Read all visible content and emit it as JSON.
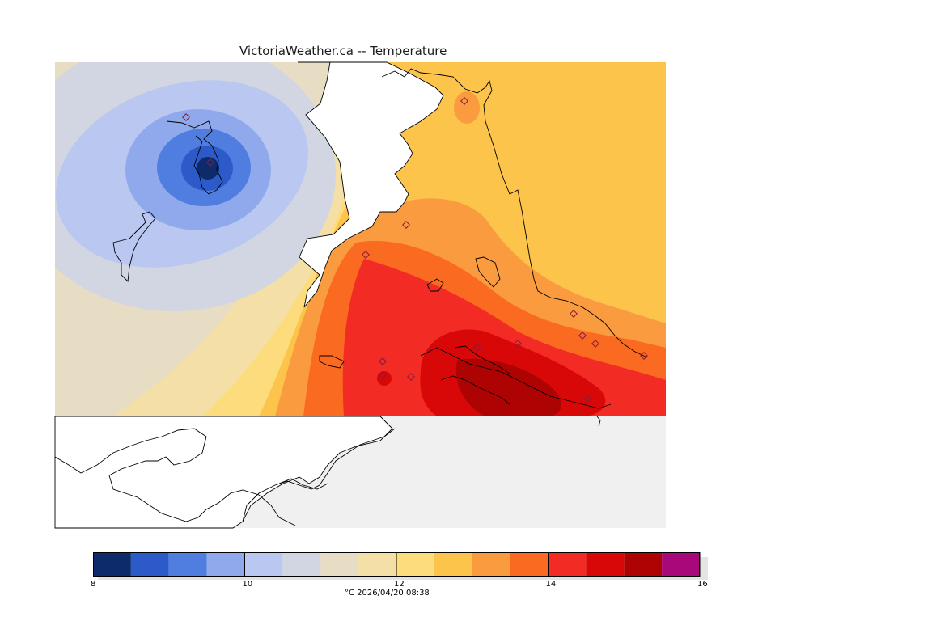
{
  "title": "VictoriaWeather.ca -- Temperature",
  "legend": {
    "min": 8,
    "max": 16,
    "step": 0.5,
    "tick_labels": [
      "8",
      "10",
      "12",
      "14",
      "16"
    ],
    "tick_values": [
      8,
      10,
      12,
      14,
      16
    ],
    "colors": [
      "#0d2a6b",
      "#2c5bc9",
      "#4f7ee0",
      "#8fa9ec",
      "#b9c7f1",
      "#d1d6e2",
      "#e7dcc4",
      "#f4e0a6",
      "#fddc7d",
      "#fdc44c",
      "#fb9b3f",
      "#fb6a21",
      "#f32b25",
      "#d90808",
      "#ad0303",
      "#a8087a"
    ],
    "caption": "°C  2026/04/20 08:38"
  },
  "map": {
    "background_land_color": "#f0f0f0",
    "water_color": "#ffffff",
    "coast_color": "#000000",
    "station_marker_color": "#c03060"
  }
}
